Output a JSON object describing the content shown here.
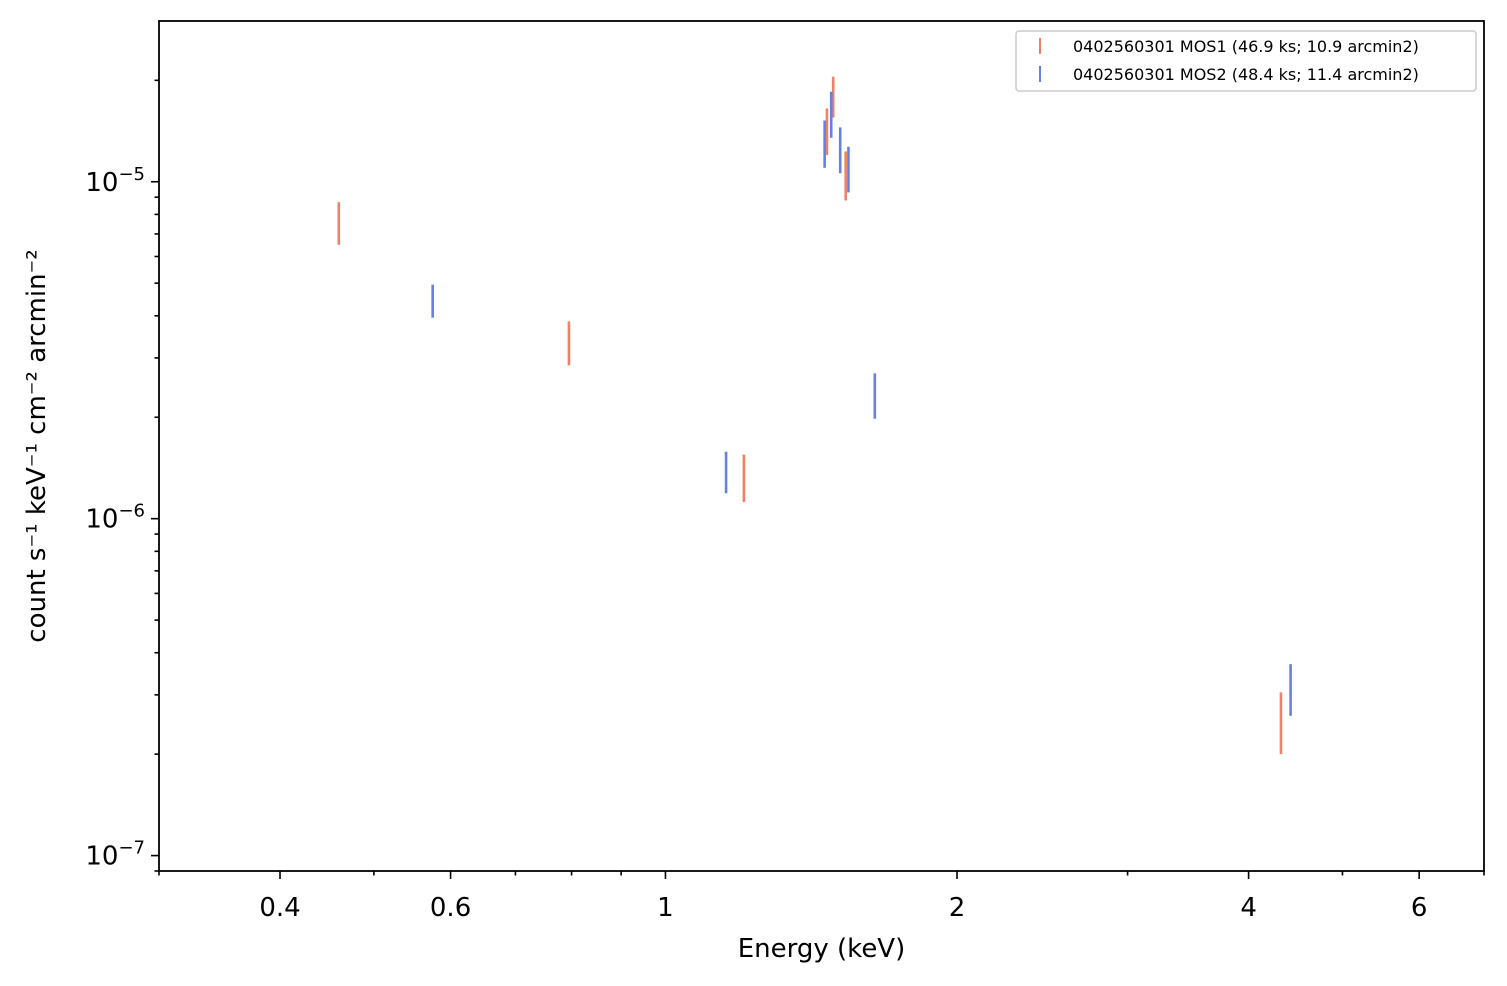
{
  "chart_data": {
    "type": "scatter",
    "title": "",
    "xlabel": "Energy (keV)",
    "ylabel": "count s⁻¹ keV⁻¹ cm⁻² arcmin⁻²",
    "xscale": "log",
    "yscale": "log",
    "xlim": [
      0.3,
      7.0
    ],
    "ylim": [
      9e-08,
      3e-05
    ],
    "x_ticks": [
      {
        "value": 0.4,
        "label": "0.4"
      },
      {
        "value": 0.6,
        "label": "0.6"
      },
      {
        "value": 1,
        "label": "1"
      },
      {
        "value": 2,
        "label": "2"
      },
      {
        "value": 4,
        "label": "4"
      },
      {
        "value": 6,
        "label": "6"
      }
    ],
    "y_ticks": [
      {
        "value": 1e-07,
        "base": "10",
        "exp": "−7"
      },
      {
        "value": 1e-06,
        "base": "10",
        "exp": "−6"
      },
      {
        "value": 1e-05,
        "base": "10",
        "exp": "−5"
      }
    ],
    "grid": false,
    "legend_position": "top-right",
    "series": [
      {
        "name": "0402560301 MOS1 (46.9 ks; 10.9 arcmin2)",
        "color": "#f08068",
        "points": [
          {
            "x": 0.46,
            "y_low": 6.5e-06,
            "y_high": 8.7e-06
          },
          {
            "x": 0.795,
            "y_low": 2.85e-06,
            "y_high": 3.85e-06
          },
          {
            "x": 1.205,
            "y_low": 1.12e-06,
            "y_high": 1.55e-06
          },
          {
            "x": 1.468,
            "y_low": 1.2e-05,
            "y_high": 1.65e-05
          },
          {
            "x": 1.49,
            "y_low": 1.55e-05,
            "y_high": 2.05e-05
          },
          {
            "x": 1.535,
            "y_low": 8.8e-06,
            "y_high": 1.23e-05
          },
          {
            "x": 4.32,
            "y_low": 2e-07,
            "y_high": 3.05e-07
          }
        ]
      },
      {
        "name": "0402560301 MOS2 (48.4 ks; 11.4 arcmin2)",
        "color": "#6680e0",
        "points": [
          {
            "x": 0.575,
            "y_low": 3.95e-06,
            "y_high": 4.95e-06
          },
          {
            "x": 1.155,
            "y_low": 1.19e-06,
            "y_high": 1.58e-06
          },
          {
            "x": 1.46,
            "y_low": 1.1e-05,
            "y_high": 1.52e-05
          },
          {
            "x": 1.483,
            "y_low": 1.35e-05,
            "y_high": 1.85e-05
          },
          {
            "x": 1.515,
            "y_low": 1.06e-05,
            "y_high": 1.45e-05
          },
          {
            "x": 1.545,
            "y_low": 9.3e-06,
            "y_high": 1.27e-05
          },
          {
            "x": 1.645,
            "y_low": 1.98e-06,
            "y_high": 2.7e-06
          },
          {
            "x": 4.42,
            "y_low": 2.6e-07,
            "y_high": 3.7e-07
          }
        ]
      }
    ]
  }
}
